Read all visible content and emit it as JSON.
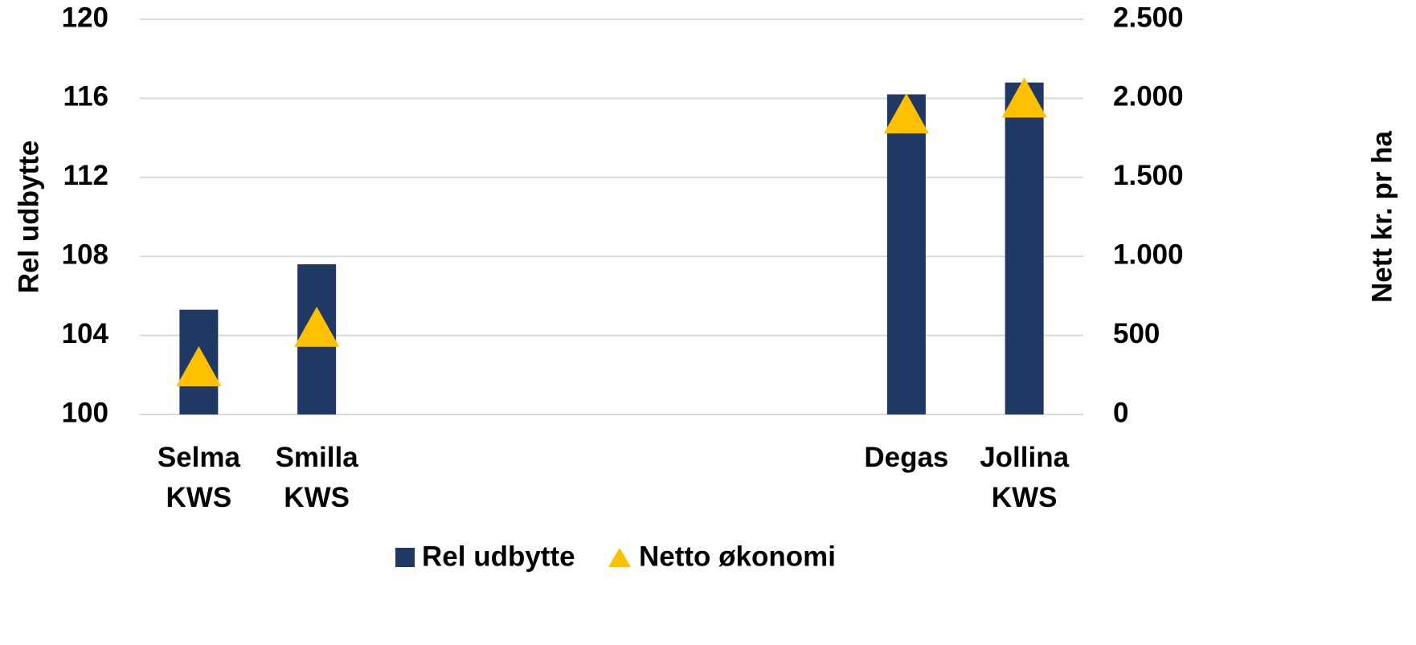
{
  "chart_data": {
    "type": "bar",
    "categories": [
      "Selma KWS",
      "Smilla KWS",
      null,
      null,
      null,
      null,
      "Degas",
      "Jollina KWS"
    ],
    "series": [
      {
        "name": "Rel udbytte",
        "color": "#203864",
        "values": [
          105.3,
          107.6,
          null,
          null,
          null,
          null,
          116.2,
          116.8
        ]
      },
      {
        "name": "Netto økonomi",
        "color": "#ffc000",
        "axis": "y2",
        "type": "triangle",
        "values": [
          300,
          550,
          null,
          null,
          null,
          null,
          1900,
          2000
        ]
      }
    ],
    "ylabel": "Rel udbytte",
    "y2label": "Nett kr. pr ha",
    "ylim": [
      100,
      120
    ],
    "yticks": [
      100,
      104,
      108,
      112,
      116,
      120
    ],
    "y2lim": [
      0,
      2500
    ],
    "y2ticks": [
      0,
      500,
      {
        "value": 1000,
        "label": "1.000"
      },
      {
        "value": 1500,
        "label": "1.500"
      },
      {
        "value": 2000,
        "label": "2.000"
      },
      {
        "value": 2500,
        "label": "2.500"
      }
    ],
    "grid": true,
    "legend": "bottom"
  }
}
